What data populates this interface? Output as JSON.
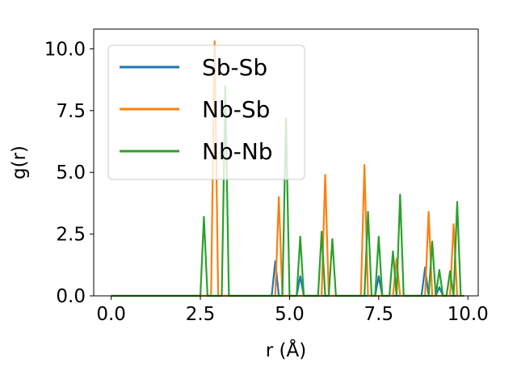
{
  "chart_data": {
    "type": "line",
    "xlabel": "r (Å)",
    "ylabel": "g(r)",
    "xlim": [
      -0.49,
      10.29
    ],
    "ylim": [
      0.0,
      10.8
    ],
    "xticks": [
      0.0,
      2.5,
      5.0,
      7.5,
      10.0
    ],
    "xtick_labels": [
      "0.0",
      "2.5",
      "5.0",
      "7.5",
      "10.0"
    ],
    "yticks": [
      0.0,
      2.5,
      5.0,
      7.5,
      10.0
    ],
    "ytick_labels": [
      "0.0",
      "2.5",
      "5.0",
      "7.5",
      "10.0"
    ],
    "grid": false,
    "legend_position": "top-left",
    "series": [
      {
        "name": "Sb-Sb",
        "color": "#1f77b4",
        "x": [
          0.0,
          4.5,
          4.6,
          4.7,
          5.2,
          5.3,
          5.4,
          7.4,
          7.5,
          7.6,
          8.7,
          8.8,
          8.9,
          9.1,
          9.2,
          9.3,
          9.8
        ],
        "y": [
          0.0,
          0.0,
          1.4,
          0.0,
          0.0,
          0.8,
          0.0,
          0.0,
          0.8,
          0.0,
          0.0,
          1.15,
          0.0,
          0.0,
          0.35,
          0.0,
          0.0
        ]
      },
      {
        "name": "Nb-Sb",
        "color": "#ff7f0e",
        "x": [
          0.0,
          2.8,
          2.9,
          3.0,
          4.6,
          4.7,
          4.8,
          5.9,
          6.0,
          6.1,
          7.0,
          7.1,
          7.2,
          7.9,
          8.0,
          8.1,
          8.8,
          8.9,
          9.0,
          9.5,
          9.6,
          9.7,
          9.8
        ],
        "y": [
          0.0,
          0.0,
          10.3,
          0.0,
          0.0,
          4.0,
          0.0,
          0.0,
          4.9,
          0.0,
          0.0,
          5.3,
          0.0,
          0.0,
          1.5,
          0.0,
          0.0,
          3.4,
          0.0,
          0.0,
          2.9,
          0.0,
          0.0
        ]
      },
      {
        "name": "Nb-Nb",
        "color": "#2ca02c",
        "x": [
          0.0,
          2.5,
          2.6,
          2.7,
          3.1,
          3.2,
          3.3,
          4.8,
          4.9,
          5.0,
          5.2,
          5.3,
          5.4,
          5.8,
          5.9,
          6.0,
          6.1,
          6.2,
          6.3,
          7.1,
          7.2,
          7.3,
          7.4,
          7.5,
          7.6,
          7.8,
          7.9,
          8.0,
          8.1,
          8.2,
          8.9,
          9.0,
          9.1,
          9.2,
          9.3,
          9.4,
          9.5,
          9.6,
          9.7,
          9.8,
          9.9
        ],
        "y": [
          0.0,
          0.0,
          3.2,
          0.0,
          0.0,
          8.5,
          0.0,
          0.0,
          7.2,
          0.0,
          0.0,
          2.4,
          0.0,
          0.0,
          2.6,
          0.0,
          0.0,
          2.3,
          0.0,
          0.0,
          3.4,
          0.0,
          0.0,
          2.4,
          0.0,
          0.0,
          1.8,
          0.0,
          4.1,
          0.0,
          0.0,
          2.2,
          0.0,
          1.05,
          0.0,
          0.0,
          1.0,
          0.0,
          3.8,
          0.0,
          0.0
        ]
      }
    ]
  }
}
